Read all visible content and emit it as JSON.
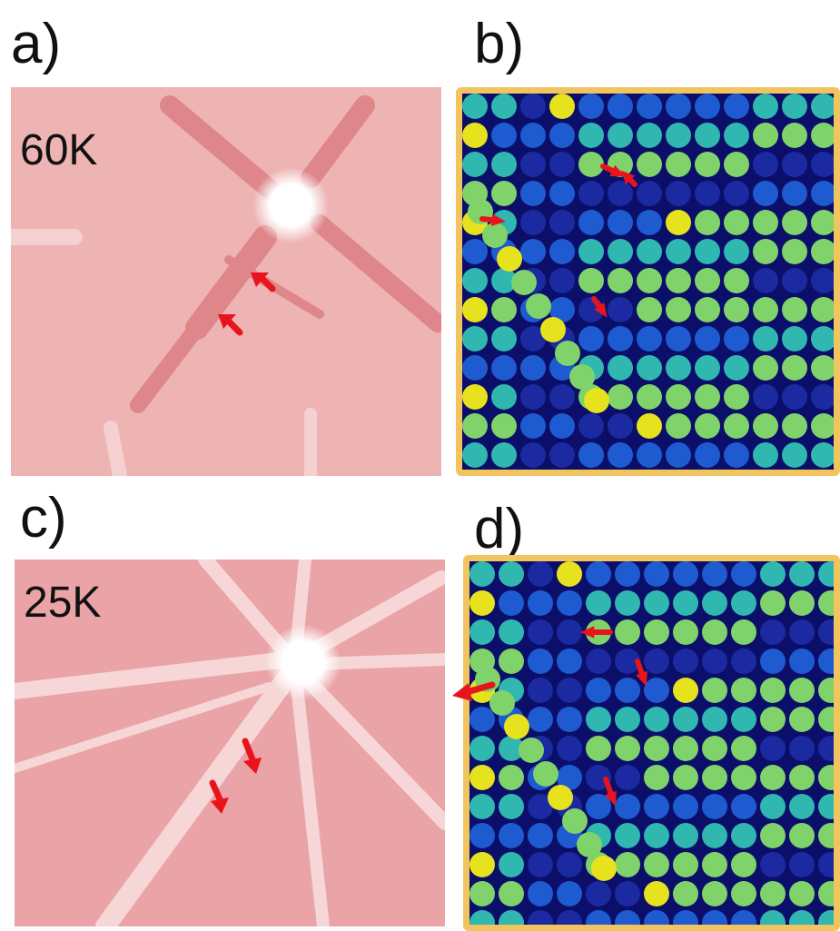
{
  "figure": {
    "panels": [
      {
        "id": "a",
        "label": "a)",
        "temperature": "60K",
        "kind": "diffraction"
      },
      {
        "id": "b",
        "label": "b)",
        "kind": "lattice"
      },
      {
        "id": "c",
        "label": "c)",
        "temperature": "25K",
        "kind": "diffraction"
      },
      {
        "id": "d",
        "label": "d)",
        "kind": "lattice"
      }
    ]
  },
  "colors": {
    "pattern_background": "#eeb3b3",
    "streak_dark": "#d9777d",
    "streak_light": "#fbe7e7",
    "arrow": "#e8141c",
    "frame": "#f2c45f",
    "lattice_background": "#0b0f6a",
    "atom_yellow": "#e6e21e",
    "atom_green": "#7fd36a",
    "atom_teal": "#2fb7b0",
    "atom_blue": "#1e5bd1",
    "atom_navy": "#1b2aa0"
  }
}
